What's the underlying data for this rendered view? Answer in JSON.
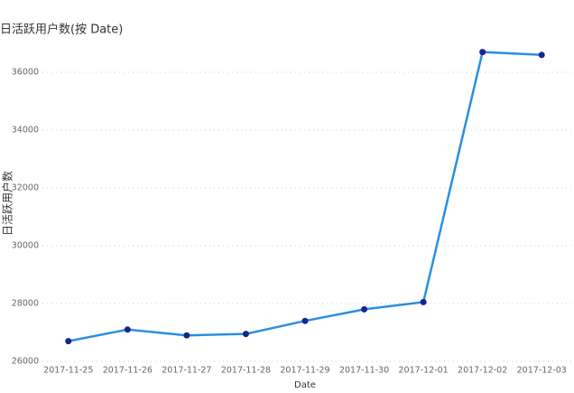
{
  "chart_data": {
    "type": "line",
    "title": "日活跃用户数(按 Date)",
    "x_label": "Date",
    "y_label": "日活跃用户数",
    "categories": [
      "2017-11-25",
      "2017-11-26",
      "2017-11-27",
      "2017-11-28",
      "2017-11-29",
      "2017-11-30",
      "2017-12-01",
      "2017-12-02",
      "2017-12-03"
    ],
    "values": [
      26700,
      27100,
      26900,
      26950,
      27400,
      27800,
      28050,
      36700,
      36600
    ],
    "color": "#2b8fe0",
    "marker_color": "#17258f",
    "ylim": [
      26000,
      37000
    ],
    "yticks": [
      26000,
      28000,
      30000,
      32000,
      34000,
      36000
    ],
    "grid": true
  }
}
